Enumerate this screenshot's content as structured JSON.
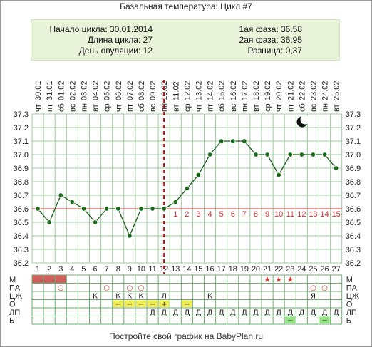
{
  "title": "Базальная температура: Цикл #7",
  "info": {
    "cycle_start": "Начало цикла: 30.01.2014",
    "cycle_length": "Длина цикла: 27",
    "ovulation_day": "День овуляции: 12",
    "phase1": "1ая фаза: 36.58",
    "phase2": "2ая фаза: 36.95",
    "difference": "Разница: 0,37"
  },
  "footer": "Постройте свой график на BabyPlan.ru",
  "colors": {
    "line": "#1a5a1a",
    "point": "#1a6b1a",
    "coverline": "#cc3333",
    "ovulation": "#cc0000",
    "grid": "#9fcc9f",
    "tick_label": "#cc3333",
    "menses": "#d06060",
    "yellow_cell": "#f0ec50",
    "green_cell": "#8fe07f"
  },
  "icon": "moon-icon",
  "chart_data": {
    "type": "line",
    "title": "Базальная температура: Цикл #7",
    "x": [
      1,
      2,
      3,
      4,
      5,
      6,
      7,
      8,
      9,
      10,
      11,
      12,
      13,
      14,
      15,
      16,
      17,
      18,
      19,
      20,
      21,
      22,
      23,
      24,
      25,
      26,
      27
    ],
    "dates": [
      "30.01",
      "31.01",
      "01.02",
      "02.02",
      "03.02",
      "04.02",
      "05.02",
      "06.02",
      "07.02",
      "08.02",
      "09.02",
      "10.02",
      "11.02",
      "12.02",
      "13.02",
      "14.02",
      "15.02",
      "16.02",
      "17.02",
      "18.02",
      "19.02",
      "20.02",
      "21.02",
      "22.02",
      "23.02",
      "24.02",
      "25.02"
    ],
    "weekdays": [
      "чт",
      "пт",
      "сб",
      "вс",
      "пн",
      "вт",
      "ср",
      "чт",
      "пт",
      "сб",
      "вс",
      "пн",
      "вт",
      "ср",
      "чт",
      "пт",
      "сб",
      "вс",
      "пн",
      "вт",
      "ср",
      "чт",
      "пт",
      "сб",
      "вс",
      "пн",
      "вт"
    ],
    "temperatures": [
      36.6,
      36.5,
      36.7,
      36.65,
      36.6,
      36.5,
      36.6,
      36.6,
      36.4,
      36.6,
      36.6,
      36.6,
      36.65,
      36.75,
      36.85,
      37.0,
      37.1,
      37.1,
      37.1,
      37.0,
      37.0,
      36.85,
      37.0,
      37.0,
      37.0,
      37.0,
      36.9
    ],
    "ylim": [
      36.2,
      37.3
    ],
    "yticks": [
      "36.2",
      "36.3",
      "36.4",
      "36.5",
      "36.6",
      "36.7",
      "36.8",
      "36.9",
      "37.0",
      "37.1",
      "37.2",
      "37.3"
    ],
    "coverline": 36.6,
    "ovulation_day": 12,
    "luteal_day_labels": [
      "1",
      "2",
      "3",
      "4",
      "5",
      "6",
      "7",
      "8",
      "9",
      "10",
      "11",
      "12",
      "13",
      "14",
      "15"
    ],
    "grid": true
  },
  "rows": {
    "labels": [
      "М",
      "ПА",
      "ЦЖ",
      "О",
      "ЛП",
      "Б"
    ],
    "menses_days": [
      1,
      2,
      3
    ],
    "star_days": [
      21,
      22,
      23
    ],
    "pa_marks": [
      {
        "day": 3,
        "text": "○"
      },
      {
        "day": 7,
        "text": "○"
      },
      {
        "day": 9,
        "text": "○"
      },
      {
        "day": 10,
        "text": "○"
      },
      {
        "day": 25,
        "text": "○"
      },
      {
        "day": 26,
        "text": "○"
      }
    ],
    "cj_marks": [
      {
        "day": 6,
        "text": "К"
      },
      {
        "day": 8,
        "text": "К"
      },
      {
        "day": 9,
        "text": "К"
      },
      {
        "day": 10,
        "text": "К"
      },
      {
        "day": 12,
        "text": "Л"
      },
      {
        "day": 16,
        "text": "К"
      },
      {
        "day": 25,
        "text": "Я"
      }
    ],
    "o_marks": [
      {
        "day": 8,
        "text": "−"
      },
      {
        "day": 9,
        "text": "−"
      },
      {
        "day": 10,
        "text": "−"
      },
      {
        "day": 11,
        "text": "−"
      },
      {
        "day": 12,
        "text": "+"
      },
      {
        "day": 14,
        "text": "−"
      }
    ],
    "lp_marks": [
      {
        "day": 11,
        "text": "Д"
      },
      {
        "day": 12,
        "text": "Д"
      },
      {
        "day": 13,
        "text": "Д"
      },
      {
        "day": 14,
        "text": "Д"
      },
      {
        "day": 15,
        "text": "Д"
      },
      {
        "day": 16,
        "text": "Д"
      },
      {
        "day": 17,
        "text": "Д"
      },
      {
        "day": 18,
        "text": "Д"
      },
      {
        "day": 19,
        "text": "Д"
      },
      {
        "day": 20,
        "text": "Д"
      },
      {
        "day": 21,
        "text": "Д"
      },
      {
        "day": 22,
        "text": "Д"
      },
      {
        "day": 23,
        "text": "Д"
      },
      {
        "day": 24,
        "text": "Д"
      },
      {
        "day": 25,
        "text": "Д"
      },
      {
        "day": 26,
        "text": "Д"
      },
      {
        "day": 27,
        "text": "Д"
      }
    ],
    "b_green_days": [
      23,
      26
    ],
    "b_marks": [
      {
        "day": 23,
        "text": "−"
      },
      {
        "day": 26,
        "text": "−"
      }
    ]
  }
}
